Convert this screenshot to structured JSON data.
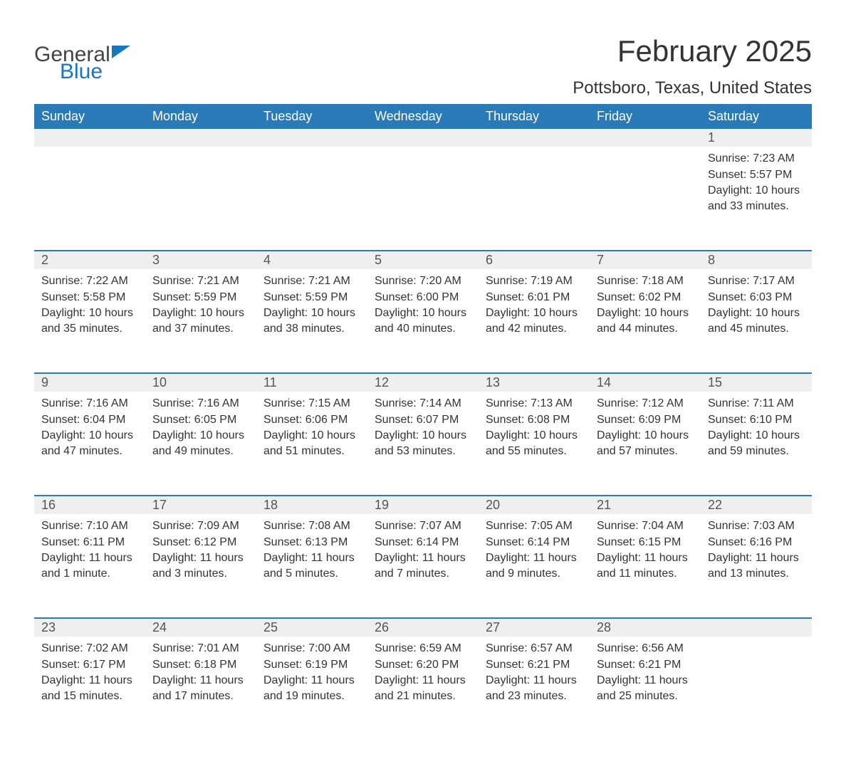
{
  "brand": {
    "word1": "General",
    "word2": "Blue",
    "accent_color": "#1976c0"
  },
  "header": {
    "title": "February 2025",
    "location": "Pottsboro, Texas, United States"
  },
  "colors": {
    "header_bg": "#2a7ab8",
    "header_text": "#ffffff",
    "daynum_bg": "#efefef",
    "week_divider": "#2a7ab8",
    "body_text": "#333333"
  },
  "day_headers": [
    "Sunday",
    "Monday",
    "Tuesday",
    "Wednesday",
    "Thursday",
    "Friday",
    "Saturday"
  ],
  "weeks": [
    [
      {
        "day": "",
        "sunrise": "",
        "sunset": "",
        "daylight": ""
      },
      {
        "day": "",
        "sunrise": "",
        "sunset": "",
        "daylight": ""
      },
      {
        "day": "",
        "sunrise": "",
        "sunset": "",
        "daylight": ""
      },
      {
        "day": "",
        "sunrise": "",
        "sunset": "",
        "daylight": ""
      },
      {
        "day": "",
        "sunrise": "",
        "sunset": "",
        "daylight": ""
      },
      {
        "day": "",
        "sunrise": "",
        "sunset": "",
        "daylight": ""
      },
      {
        "day": "1",
        "sunrise": "Sunrise: 7:23 AM",
        "sunset": "Sunset: 5:57 PM",
        "daylight": "Daylight: 10 hours and 33 minutes."
      }
    ],
    [
      {
        "day": "2",
        "sunrise": "Sunrise: 7:22 AM",
        "sunset": "Sunset: 5:58 PM",
        "daylight": "Daylight: 10 hours and 35 minutes."
      },
      {
        "day": "3",
        "sunrise": "Sunrise: 7:21 AM",
        "sunset": "Sunset: 5:59 PM",
        "daylight": "Daylight: 10 hours and 37 minutes."
      },
      {
        "day": "4",
        "sunrise": "Sunrise: 7:21 AM",
        "sunset": "Sunset: 5:59 PM",
        "daylight": "Daylight: 10 hours and 38 minutes."
      },
      {
        "day": "5",
        "sunrise": "Sunrise: 7:20 AM",
        "sunset": "Sunset: 6:00 PM",
        "daylight": "Daylight: 10 hours and 40 minutes."
      },
      {
        "day": "6",
        "sunrise": "Sunrise: 7:19 AM",
        "sunset": "Sunset: 6:01 PM",
        "daylight": "Daylight: 10 hours and 42 minutes."
      },
      {
        "day": "7",
        "sunrise": "Sunrise: 7:18 AM",
        "sunset": "Sunset: 6:02 PM",
        "daylight": "Daylight: 10 hours and 44 minutes."
      },
      {
        "day": "8",
        "sunrise": "Sunrise: 7:17 AM",
        "sunset": "Sunset: 6:03 PM",
        "daylight": "Daylight: 10 hours and 45 minutes."
      }
    ],
    [
      {
        "day": "9",
        "sunrise": "Sunrise: 7:16 AM",
        "sunset": "Sunset: 6:04 PM",
        "daylight": "Daylight: 10 hours and 47 minutes."
      },
      {
        "day": "10",
        "sunrise": "Sunrise: 7:16 AM",
        "sunset": "Sunset: 6:05 PM",
        "daylight": "Daylight: 10 hours and 49 minutes."
      },
      {
        "day": "11",
        "sunrise": "Sunrise: 7:15 AM",
        "sunset": "Sunset: 6:06 PM",
        "daylight": "Daylight: 10 hours and 51 minutes."
      },
      {
        "day": "12",
        "sunrise": "Sunrise: 7:14 AM",
        "sunset": "Sunset: 6:07 PM",
        "daylight": "Daylight: 10 hours and 53 minutes."
      },
      {
        "day": "13",
        "sunrise": "Sunrise: 7:13 AM",
        "sunset": "Sunset: 6:08 PM",
        "daylight": "Daylight: 10 hours and 55 minutes."
      },
      {
        "day": "14",
        "sunrise": "Sunrise: 7:12 AM",
        "sunset": "Sunset: 6:09 PM",
        "daylight": "Daylight: 10 hours and 57 minutes."
      },
      {
        "day": "15",
        "sunrise": "Sunrise: 7:11 AM",
        "sunset": "Sunset: 6:10 PM",
        "daylight": "Daylight: 10 hours and 59 minutes."
      }
    ],
    [
      {
        "day": "16",
        "sunrise": "Sunrise: 7:10 AM",
        "sunset": "Sunset: 6:11 PM",
        "daylight": "Daylight: 11 hours and 1 minute."
      },
      {
        "day": "17",
        "sunrise": "Sunrise: 7:09 AM",
        "sunset": "Sunset: 6:12 PM",
        "daylight": "Daylight: 11 hours and 3 minutes."
      },
      {
        "day": "18",
        "sunrise": "Sunrise: 7:08 AM",
        "sunset": "Sunset: 6:13 PM",
        "daylight": "Daylight: 11 hours and 5 minutes."
      },
      {
        "day": "19",
        "sunrise": "Sunrise: 7:07 AM",
        "sunset": "Sunset: 6:14 PM",
        "daylight": "Daylight: 11 hours and 7 minutes."
      },
      {
        "day": "20",
        "sunrise": "Sunrise: 7:05 AM",
        "sunset": "Sunset: 6:14 PM",
        "daylight": "Daylight: 11 hours and 9 minutes."
      },
      {
        "day": "21",
        "sunrise": "Sunrise: 7:04 AM",
        "sunset": "Sunset: 6:15 PM",
        "daylight": "Daylight: 11 hours and 11 minutes."
      },
      {
        "day": "22",
        "sunrise": "Sunrise: 7:03 AM",
        "sunset": "Sunset: 6:16 PM",
        "daylight": "Daylight: 11 hours and 13 minutes."
      }
    ],
    [
      {
        "day": "23",
        "sunrise": "Sunrise: 7:02 AM",
        "sunset": "Sunset: 6:17 PM",
        "daylight": "Daylight: 11 hours and 15 minutes."
      },
      {
        "day": "24",
        "sunrise": "Sunrise: 7:01 AM",
        "sunset": "Sunset: 6:18 PM",
        "daylight": "Daylight: 11 hours and 17 minutes."
      },
      {
        "day": "25",
        "sunrise": "Sunrise: 7:00 AM",
        "sunset": "Sunset: 6:19 PM",
        "daylight": "Daylight: 11 hours and 19 minutes."
      },
      {
        "day": "26",
        "sunrise": "Sunrise: 6:59 AM",
        "sunset": "Sunset: 6:20 PM",
        "daylight": "Daylight: 11 hours and 21 minutes."
      },
      {
        "day": "27",
        "sunrise": "Sunrise: 6:57 AM",
        "sunset": "Sunset: 6:21 PM",
        "daylight": "Daylight: 11 hours and 23 minutes."
      },
      {
        "day": "28",
        "sunrise": "Sunrise: 6:56 AM",
        "sunset": "Sunset: 6:21 PM",
        "daylight": "Daylight: 11 hours and 25 minutes."
      },
      {
        "day": "",
        "sunrise": "",
        "sunset": "",
        "daylight": ""
      }
    ]
  ]
}
